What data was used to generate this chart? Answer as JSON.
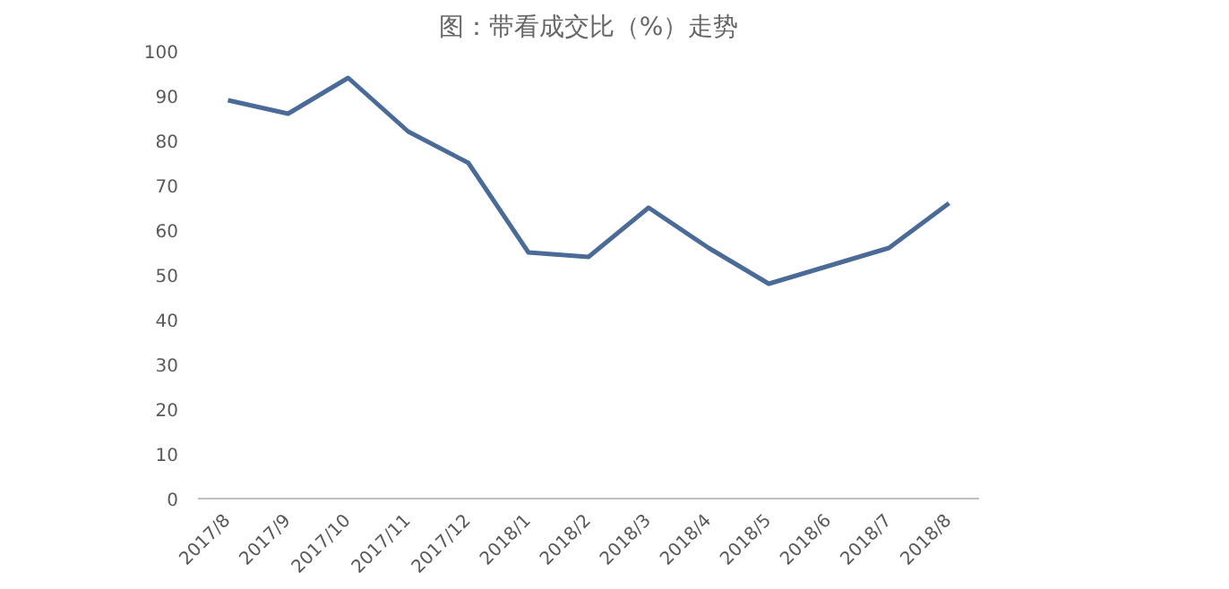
{
  "chart_data": {
    "type": "line",
    "title": "图：带看成交比（%）走势",
    "categories": [
      "2017/8",
      "2017/9",
      "2017/10",
      "2017/11",
      "2017/12",
      "2018/1",
      "2018/2",
      "2018/3",
      "2018/4",
      "2018/5",
      "2018/6",
      "2018/7",
      "2018/8"
    ],
    "series": [
      {
        "color": "#4a6a97",
        "values": [
          89,
          86,
          94,
          82,
          75,
          55,
          54,
          65,
          56,
          48,
          52,
          56,
          66
        ]
      }
    ],
    "ylim": [
      0,
      100
    ],
    "yticks": [
      0,
      10,
      20,
      30,
      40,
      50,
      60,
      70,
      80,
      90,
      100
    ],
    "grid": false,
    "marker": "none",
    "line_style": "solid"
  }
}
